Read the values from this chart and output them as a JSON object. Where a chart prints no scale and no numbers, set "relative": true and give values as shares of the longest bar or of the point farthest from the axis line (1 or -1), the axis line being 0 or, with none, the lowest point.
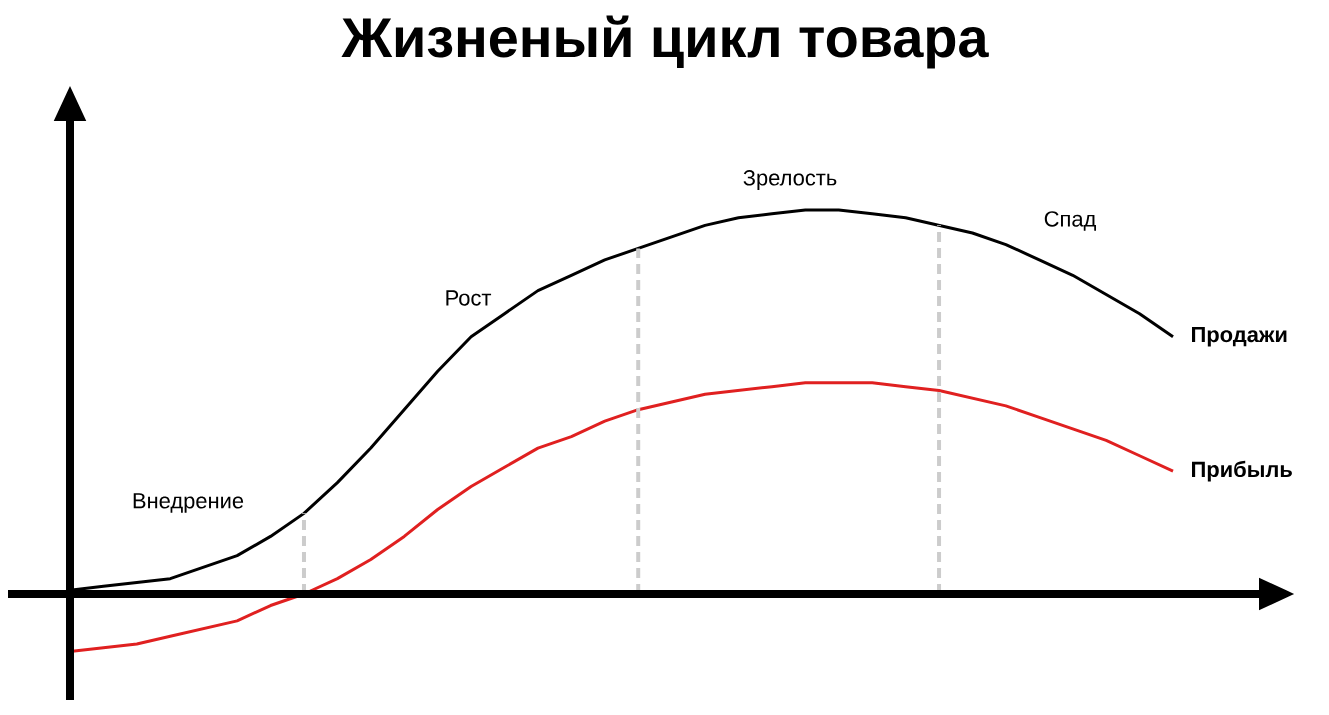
{
  "chart_data": {
    "type": "line",
    "title": "Жизненый цикл товара",
    "relative": true,
    "categories": [
      null,
      null,
      null,
      null,
      null,
      null,
      null,
      null,
      null,
      null,
      null,
      null,
      null,
      null,
      null,
      null,
      null,
      null,
      null,
      null,
      null,
      null,
      null,
      null,
      null,
      null,
      null,
      null,
      null,
      null,
      null,
      null,
      null,
      null
    ],
    "series": [
      {
        "name": "Продажи",
        "color": "#000000",
        "values": [
          0.01,
          0.02,
          0.03,
          0.04,
          0.07,
          0.1,
          0.15,
          0.21,
          0.29,
          0.38,
          0.48,
          0.58,
          0.67,
          0.73,
          0.79,
          0.83,
          0.87,
          0.9,
          0.93,
          0.96,
          0.98,
          0.99,
          1.0,
          1.0,
          0.99,
          0.98,
          0.96,
          0.94,
          0.91,
          0.87,
          0.83,
          0.78,
          0.73,
          0.67
        ]
      },
      {
        "name": "Прибыль",
        "color": "#e02020",
        "values": [
          -0.15,
          -0.14,
          -0.13,
          -0.11,
          -0.09,
          -0.07,
          -0.03,
          0,
          0.04,
          0.09,
          0.15,
          0.22,
          0.28,
          0.33,
          0.38,
          0.41,
          0.45,
          0.48,
          0.5,
          0.52,
          0.53,
          0.54,
          0.55,
          0.55,
          0.55,
          0.54,
          0.53,
          0.51,
          0.49,
          0.46,
          0.43,
          0.4,
          0.36,
          0.32
        ]
      }
    ],
    "annotations": [
      "Внедрение",
      "Рост",
      "Зрелость",
      "Спад"
    ],
    "line_style": "solid"
  }
}
